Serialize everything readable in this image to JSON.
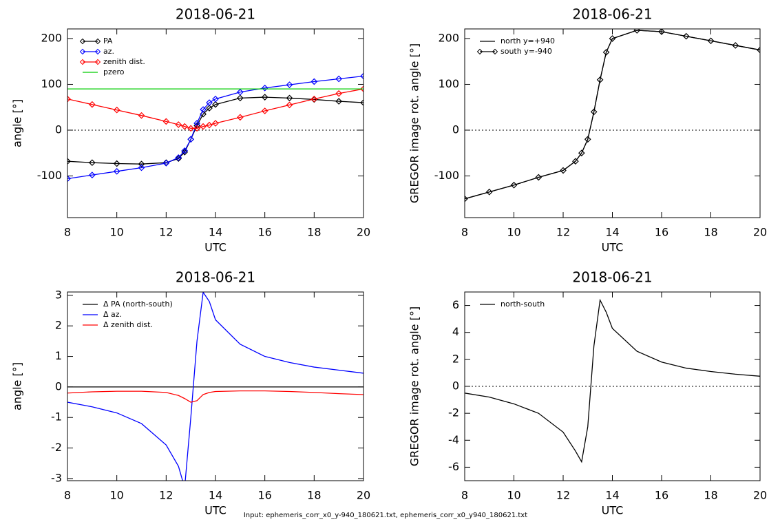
{
  "chart_data": [
    {
      "type": "line",
      "title": "2018-06-21",
      "xlabel": "UTC",
      "ylabel": "angle [°]",
      "legend": "upper left",
      "zero_line": true,
      "x": [
        8,
        9,
        10,
        11,
        12,
        12.5,
        12.75,
        13,
        13.25,
        13.5,
        13.75,
        14,
        15,
        16,
        17,
        18,
        19,
        20
      ],
      "xlim": [
        8,
        20
      ],
      "xticks": [
        8,
        10,
        12,
        14,
        16,
        18,
        20
      ],
      "ylim": [
        -191,
        221
      ],
      "yticks": [
        -100,
        0,
        100,
        200
      ],
      "series": [
        {
          "name": "PA",
          "color": "#000000",
          "marker": "diamond",
          "values": [
            -68,
            -71,
            -73,
            -74,
            -71,
            -62,
            -48,
            -20,
            10,
            35,
            48,
            56,
            70,
            72,
            70,
            67,
            63,
            60
          ]
        },
        {
          "name": "az.",
          "color": "#0000ff",
          "marker": "diamond",
          "values": [
            -106,
            -98,
            -90,
            -82,
            -72,
            -60,
            -45,
            -20,
            15,
            45,
            60,
            68,
            83,
            92,
            99,
            106,
            112,
            118
          ]
        },
        {
          "name": "zenith dist.",
          "color": "#ff0000",
          "marker": "diamond",
          "values": [
            68,
            56,
            44,
            32,
            19,
            12,
            8,
            4,
            4,
            8,
            11,
            15,
            28,
            42,
            55,
            68,
            80,
            90
          ]
        },
        {
          "name": "pzero",
          "color": "#00cc00",
          "values": [
            90,
            90,
            90,
            90,
            90,
            90,
            90,
            90,
            90,
            90,
            90,
            90,
            90,
            90,
            90,
            90,
            90,
            90
          ]
        }
      ]
    },
    {
      "type": "line",
      "title": "2018-06-21",
      "xlabel": "UTC",
      "ylabel": "GREGOR image rot. angle [°]",
      "legend": "upper left",
      "zero_line": true,
      "x": [
        8,
        9,
        10,
        11,
        12,
        12.5,
        12.75,
        13,
        13.25,
        13.5,
        13.75,
        14,
        15,
        16,
        17,
        18,
        19,
        20
      ],
      "xlim": [
        8,
        20
      ],
      "xticks": [
        8,
        10,
        12,
        14,
        16,
        18,
        20
      ],
      "ylim": [
        -191,
        221
      ],
      "yticks": [
        -100,
        0,
        100,
        200
      ],
      "series": [
        {
          "name": "north y=+940",
          "color": "#000000",
          "values": [
            -150,
            -135,
            -120,
            -103,
            -88,
            -68,
            -50,
            -20,
            40,
            110,
            170,
            200,
            218,
            215,
            205,
            195,
            185,
            175
          ]
        },
        {
          "name": "south y=-940",
          "color": "#000000",
          "marker": "diamond",
          "values": [
            -150,
            -135,
            -120,
            -103,
            -88,
            -68,
            -50,
            -20,
            40,
            110,
            170,
            200,
            218,
            215,
            205,
            195,
            185,
            175
          ]
        }
      ]
    },
    {
      "type": "line",
      "title": "2018-06-21",
      "xlabel": "UTC",
      "ylabel": "angle [°]",
      "legend": "upper left",
      "zero_line": false,
      "x": [
        8,
        9,
        10,
        11,
        12,
        12.5,
        12.75,
        13,
        13.25,
        13.5,
        13.75,
        14,
        15,
        16,
        17,
        18,
        19,
        20
      ],
      "xlim": [
        8,
        20
      ],
      "xticks": [
        8,
        10,
        12,
        14,
        16,
        18,
        20
      ],
      "ylim": [
        -3.07,
        3.11
      ],
      "yticks": [
        -3,
        -2,
        -1,
        0,
        1,
        2,
        3
      ],
      "series": [
        {
          "name": "Δ PA (north-south)",
          "color": "#000000",
          "values": [
            0,
            0,
            0,
            0,
            0,
            0,
            0,
            0,
            0,
            0,
            0,
            0,
            0,
            0,
            0,
            0,
            0,
            0
          ]
        },
        {
          "name": "Δ az.",
          "color": "#0000ff",
          "values": [
            -0.5,
            -0.65,
            -0.85,
            -1.2,
            -1.9,
            -2.6,
            -3.3,
            -1,
            1.5,
            3.1,
            2.8,
            2.2,
            1.4,
            1.0,
            0.8,
            0.65,
            0.55,
            0.45
          ]
        },
        {
          "name": "Δ zenith dist.",
          "color": "#ff0000",
          "values": [
            -0.2,
            -0.16,
            -0.14,
            -0.14,
            -0.18,
            -0.28,
            -0.38,
            -0.5,
            -0.45,
            -0.25,
            -0.18,
            -0.15,
            -0.13,
            -0.13,
            -0.15,
            -0.18,
            -0.22,
            -0.25
          ]
        }
      ]
    },
    {
      "type": "line",
      "title": "2018-06-21",
      "xlabel": "UTC",
      "ylabel": "GREGOR image rot. angle [°]",
      "legend": "upper left",
      "zero_line": true,
      "x": [
        8,
        9,
        10,
        11,
        12,
        12.5,
        12.75,
        13,
        13.25,
        13.5,
        13.75,
        14,
        15,
        16,
        17,
        18,
        19,
        20
      ],
      "xlim": [
        8,
        20
      ],
      "xticks": [
        8,
        10,
        12,
        14,
        16,
        18,
        20
      ],
      "ylim": [
        -7,
        7
      ],
      "yticks": [
        -6,
        -4,
        -2,
        0,
        2,
        4,
        6
      ],
      "series": [
        {
          "name": "north-south",
          "color": "#000000",
          "values": [
            -0.5,
            -0.8,
            -1.3,
            -2.0,
            -3.4,
            -4.8,
            -5.6,
            -3,
            3,
            6.4,
            5.5,
            4.3,
            2.6,
            1.8,
            1.35,
            1.1,
            0.9,
            0.75
          ]
        }
      ]
    }
  ],
  "footer": "Input: ephemeris_corr_x0_y-940_180621.txt, ephemeris_corr_x0_y940_180621.txt"
}
